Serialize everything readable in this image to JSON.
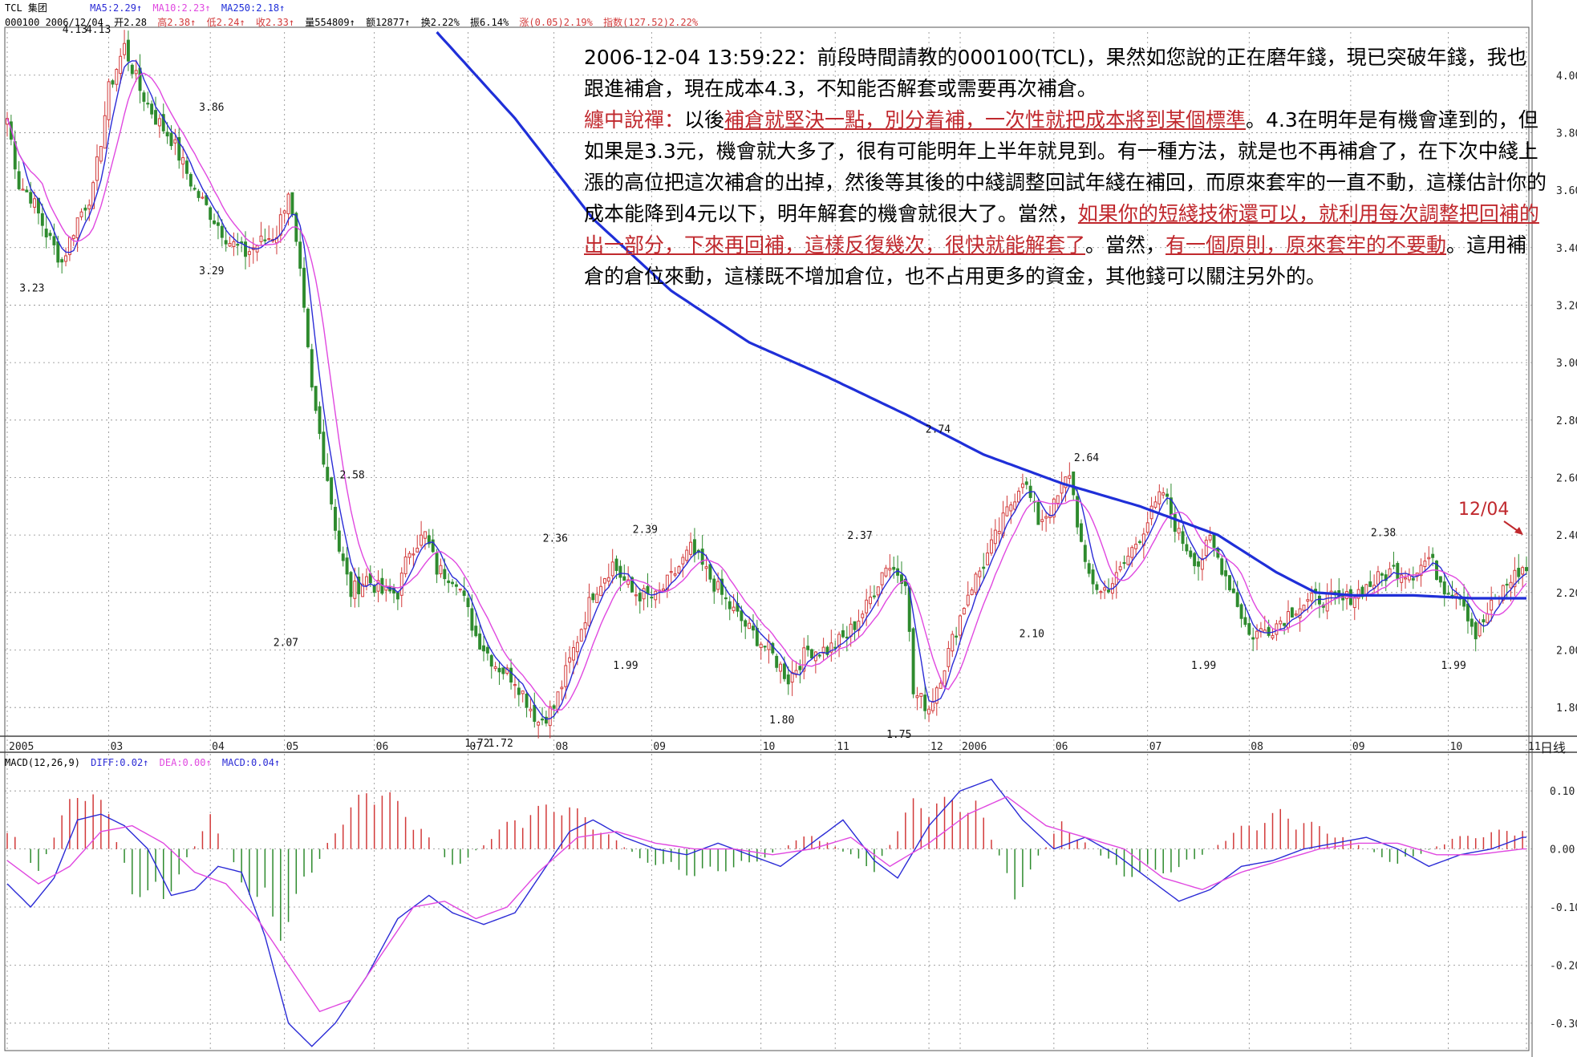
{
  "header": {
    "stock_name": "TCL 集团",
    "ma5": "MA5:2.29↑",
    "ma10": "MA10:2.23↑",
    "ma250": "MA250:2.18↑",
    "line2": {
      "code_date": "000100 2006/12/04",
      "open": "开2.28",
      "high": "高2.38↑",
      "low": "低2.24↑",
      "close": "收2.33↑",
      "volume": "量554809↑",
      "amount": "额12877↑",
      "turnover": "换2.22%",
      "amplitude": "振6.14%",
      "change": "涨(0.05)2.19%",
      "index": "指数(127.52)2.22%"
    }
  },
  "macd_header": {
    "name": "MACD(12,26,9)",
    "diff": "DIFF:0.02↑",
    "dea": "DEA:0.00↑",
    "macd": "MACD:0.04↑"
  },
  "colors": {
    "up": "#d23a3a",
    "down": "#2e8b2e",
    "ma5": "#2b2bd6",
    "ma10": "#e048e0",
    "ma250": "#1f2fd8",
    "grid": "#8a8a8a",
    "note_red": "#c0282d"
  },
  "note": {
    "line1": "2006-12-04 13:59:22：前段時間請教的000100(TCL)，果然如您說的正在磨年錢，現已突破年錢，我也跟進補倉，現在成本4.3，不知能否解套或需要再次補倉。",
    "reply_label": "纏中說禪：",
    "reply_a": "以後",
    "reply_u1": "補倉就堅決一點，別分着補，一次性就把成本將到某個標準",
    "reply_b": "。4.3在明年是有機會達到的，但如果是3.3元，機會就大多了，很有可能明年上半年就見到。有一種方法，就是也不再補倉了，在下次中綫上漲的高位把這次補倉的出掉，然後等其後的中綫調整回試年綫在補回，而原來套牢的一直不動，這樣估計你的成本能降到4元以下，明年解套的機會就很大了。當然，",
    "reply_u2": "如果你的短綫技術還可以，就利用每次調整把回補的出一部分，下來再回補，這樣反復幾次，很快就能解套了",
    "reply_c": "。當然，",
    "reply_u3": "有一個原則，原來套牢的不要動",
    "reply_d": "。這用補倉的倉位來動，這樣既不增加倉位，也不占用更多的資金，其他錢可以關注另外的。"
  },
  "marker": {
    "label": "12/04"
  },
  "period_label": "日线",
  "chart_data": [
    {
      "type": "candlestick",
      "title": "",
      "xlabel": "",
      "ylabel": "",
      "ylim": [
        1.7,
        4.15
      ],
      "yticks": [
        "4.00",
        "3.80",
        "3.60",
        "3.40",
        "3.20",
        "3.00",
        "2.80",
        "2.60",
        "2.40",
        "2.20",
        "2.00",
        "1.80"
      ],
      "xticks": [
        "2005",
        "03",
        "04",
        "05",
        "06",
        "07",
        "08",
        "09",
        "10",
        "11",
        "12",
        "2006",
        "06",
        "07",
        "08",
        "09",
        "10",
        "11"
      ],
      "grid": true,
      "close_path": [
        [
          0,
          3.85
        ],
        [
          3,
          3.62
        ],
        [
          6,
          3.58
        ],
        [
          10,
          3.45
        ],
        [
          14,
          3.35
        ],
        [
          18,
          3.5
        ],
        [
          22,
          3.6
        ],
        [
          26,
          3.95
        ],
        [
          30,
          4.1
        ],
        [
          34,
          3.95
        ],
        [
          38,
          3.85
        ],
        [
          42,
          3.78
        ],
        [
          48,
          3.6
        ],
        [
          53,
          3.5
        ],
        [
          57,
          3.42
        ],
        [
          61,
          3.38
        ],
        [
          65,
          3.42
        ],
        [
          69,
          3.45
        ],
        [
          72,
          3.6
        ],
        [
          75,
          3.3
        ],
        [
          78,
          2.9
        ],
        [
          82,
          2.6
        ],
        [
          85,
          2.35
        ],
        [
          88,
          2.2
        ],
        [
          92,
          2.25
        ],
        [
          96,
          2.2
        ],
        [
          100,
          2.2
        ],
        [
          103,
          2.35
        ],
        [
          107,
          2.4
        ],
        [
          110,
          2.28
        ],
        [
          115,
          2.25
        ],
        [
          120,
          2.05
        ],
        [
          125,
          1.95
        ],
        [
          130,
          1.9
        ],
        [
          136,
          1.75
        ],
        [
          140,
          1.8
        ],
        [
          145,
          2.0
        ],
        [
          150,
          2.2
        ],
        [
          155,
          2.3
        ],
        [
          160,
          2.2
        ],
        [
          166,
          2.18
        ],
        [
          170,
          2.25
        ],
        [
          175,
          2.35
        ],
        [
          180,
          2.25
        ],
        [
          185,
          2.15
        ],
        [
          190,
          2.07
        ],
        [
          195,
          2.0
        ],
        [
          200,
          1.9
        ],
        [
          205,
          2.0
        ],
        [
          210,
          2.0
        ],
        [
          215,
          2.05
        ],
        [
          220,
          2.15
        ],
        [
          225,
          2.3
        ],
        [
          230,
          2.25
        ],
        [
          232,
          1.85
        ],
        [
          236,
          1.8
        ],
        [
          240,
          1.95
        ],
        [
          246,
          2.2
        ],
        [
          250,
          2.3
        ],
        [
          255,
          2.45
        ],
        [
          260,
          2.6
        ],
        [
          264,
          2.45
        ],
        [
          268,
          2.5
        ],
        [
          272,
          2.62
        ],
        [
          276,
          2.28
        ],
        [
          280,
          2.2
        ],
        [
          284,
          2.25
        ],
        [
          288,
          2.35
        ],
        [
          292,
          2.45
        ],
        [
          296,
          2.55
        ],
        [
          300,
          2.4
        ],
        [
          305,
          2.3
        ],
        [
          308,
          2.38
        ],
        [
          314,
          2.2
        ],
        [
          318,
          2.05
        ],
        [
          324,
          2.08
        ],
        [
          330,
          2.15
        ],
        [
          336,
          2.18
        ],
        [
          342,
          2.17
        ],
        [
          348,
          2.22
        ],
        [
          355,
          2.28
        ],
        [
          360,
          2.27
        ],
        [
          364,
          2.32
        ],
        [
          368,
          2.22
        ],
        [
          372,
          2.2
        ],
        [
          376,
          2.05
        ],
        [
          380,
          2.15
        ],
        [
          385,
          2.25
        ],
        [
          388,
          2.28
        ]
      ],
      "ma250_path": [
        [
          110,
          4.15
        ],
        [
          130,
          3.85
        ],
        [
          150,
          3.5
        ],
        [
          170,
          3.25
        ],
        [
          190,
          3.07
        ],
        [
          210,
          2.95
        ],
        [
          230,
          2.82
        ],
        [
          250,
          2.68
        ],
        [
          270,
          2.58
        ],
        [
          290,
          2.5
        ],
        [
          310,
          2.4
        ],
        [
          325,
          2.27
        ],
        [
          335,
          2.2
        ],
        [
          345,
          2.19
        ],
        [
          360,
          2.19
        ],
        [
          375,
          2.18
        ],
        [
          388,
          2.18
        ]
      ],
      "annotations": [
        {
          "i": 17,
          "text": "4.13"
        },
        {
          "i": 23,
          "text": "4.13"
        },
        {
          "i": 6,
          "text": "3.23"
        },
        {
          "i": 52,
          "text": "3.86"
        },
        {
          "i": 52,
          "text": "3.29"
        },
        {
          "i": 71,
          "text": "2.07"
        },
        {
          "i": 88,
          "text": "2.58"
        },
        {
          "i": 120,
          "text": "1.72"
        },
        {
          "i": 126,
          "text": "1.72"
        },
        {
          "i": 140,
          "text": "2.36"
        },
        {
          "i": 158,
          "text": "1.99"
        },
        {
          "i": 163,
          "text": "2.39"
        },
        {
          "i": 198,
          "text": "1.80"
        },
        {
          "i": 218,
          "text": "2.37"
        },
        {
          "i": 228,
          "text": "1.75"
        },
        {
          "i": 238,
          "text": "2.74"
        },
        {
          "i": 262,
          "text": "2.10"
        },
        {
          "i": 276,
          "text": "2.64"
        },
        {
          "i": 306,
          "text": "1.99"
        },
        {
          "i": 352,
          "text": "2.38"
        },
        {
          "i": 370,
          "text": "1.99"
        }
      ]
    },
    {
      "type": "bar",
      "title": "",
      "xlabel": "",
      "ylabel": "",
      "ylim": [
        -0.35,
        0.15
      ],
      "yticks": [
        "0.10",
        "0.00",
        "-0.10",
        "-0.20",
        "-0.30"
      ],
      "grid": true,
      "diff_path": [
        [
          0,
          -0.06
        ],
        [
          6,
          -0.1
        ],
        [
          12,
          -0.05
        ],
        [
          18,
          0.05
        ],
        [
          24,
          0.06
        ],
        [
          30,
          0.04
        ],
        [
          36,
          0.0
        ],
        [
          42,
          -0.08
        ],
        [
          48,
          -0.07
        ],
        [
          54,
          -0.03
        ],
        [
          60,
          -0.04
        ],
        [
          66,
          -0.15
        ],
        [
          72,
          -0.3
        ],
        [
          78,
          -0.34
        ],
        [
          84,
          -0.3
        ],
        [
          92,
          -0.22
        ],
        [
          100,
          -0.12
        ],
        [
          108,
          -0.08
        ],
        [
          114,
          -0.11
        ],
        [
          122,
          -0.13
        ],
        [
          130,
          -0.11
        ],
        [
          138,
          -0.03
        ],
        [
          144,
          0.03
        ],
        [
          150,
          0.05
        ],
        [
          158,
          0.02
        ],
        [
          166,
          0.0
        ],
        [
          174,
          -0.01
        ],
        [
          182,
          0.01
        ],
        [
          190,
          -0.01
        ],
        [
          198,
          -0.03
        ],
        [
          206,
          0.01
        ],
        [
          214,
          0.05
        ],
        [
          222,
          -0.02
        ],
        [
          228,
          -0.05
        ],
        [
          236,
          0.04
        ],
        [
          244,
          0.1
        ],
        [
          252,
          0.12
        ],
        [
          260,
          0.05
        ],
        [
          268,
          0.0
        ],
        [
          276,
          0.02
        ],
        [
          284,
          -0.01
        ],
        [
          292,
          -0.05
        ],
        [
          300,
          -0.09
        ],
        [
          308,
          -0.07
        ],
        [
          316,
          -0.03
        ],
        [
          324,
          -0.02
        ],
        [
          332,
          0.0
        ],
        [
          340,
          0.01
        ],
        [
          348,
          0.02
        ],
        [
          356,
          0.0
        ],
        [
          364,
          -0.03
        ],
        [
          372,
          -0.01
        ],
        [
          380,
          0.0
        ],
        [
          388,
          0.02
        ]
      ],
      "dea_path": [
        [
          0,
          -0.02
        ],
        [
          8,
          -0.06
        ],
        [
          16,
          -0.03
        ],
        [
          24,
          0.03
        ],
        [
          32,
          0.04
        ],
        [
          40,
          0.01
        ],
        [
          48,
          -0.04
        ],
        [
          56,
          -0.06
        ],
        [
          64,
          -0.12
        ],
        [
          72,
          -0.2
        ],
        [
          80,
          -0.28
        ],
        [
          88,
          -0.26
        ],
        [
          96,
          -0.18
        ],
        [
          104,
          -0.1
        ],
        [
          112,
          -0.09
        ],
        [
          120,
          -0.12
        ],
        [
          128,
          -0.1
        ],
        [
          136,
          -0.04
        ],
        [
          146,
          0.02
        ],
        [
          156,
          0.03
        ],
        [
          166,
          0.01
        ],
        [
          176,
          0.0
        ],
        [
          186,
          0.0
        ],
        [
          196,
          -0.01
        ],
        [
          206,
          0.0
        ],
        [
          216,
          0.02
        ],
        [
          226,
          -0.03
        ],
        [
          236,
          0.01
        ],
        [
          246,
          0.06
        ],
        [
          256,
          0.09
        ],
        [
          266,
          0.04
        ],
        [
          276,
          0.02
        ],
        [
          286,
          0.0
        ],
        [
          296,
          -0.05
        ],
        [
          306,
          -0.07
        ],
        [
          316,
          -0.04
        ],
        [
          326,
          -0.02
        ],
        [
          336,
          0.0
        ],
        [
          346,
          0.01
        ],
        [
          356,
          0.01
        ],
        [
          366,
          -0.01
        ],
        [
          376,
          -0.01
        ],
        [
          388,
          0.0
        ]
      ],
      "histogram_peaks": [
        [
          0,
          0.05
        ],
        [
          8,
          -0.05
        ],
        [
          18,
          0.13
        ],
        [
          26,
          0.07
        ],
        [
          32,
          -0.08
        ],
        [
          40,
          -0.1
        ],
        [
          52,
          0.06
        ],
        [
          60,
          -0.06
        ],
        [
          70,
          -0.16
        ],
        [
          84,
          0.04
        ],
        [
          94,
          0.13
        ],
        [
          106,
          0.04
        ],
        [
          114,
          -0.04
        ],
        [
          130,
          0.06
        ],
        [
          142,
          0.09
        ],
        [
          150,
          0.05
        ],
        [
          162,
          -0.02
        ],
        [
          176,
          -0.05
        ],
        [
          190,
          -0.03
        ],
        [
          206,
          0.03
        ],
        [
          222,
          -0.04
        ],
        [
          232,
          0.09
        ],
        [
          248,
          0.09
        ],
        [
          258,
          -0.09
        ],
        [
          270,
          0.05
        ],
        [
          286,
          -0.05
        ],
        [
          300,
          -0.04
        ],
        [
          316,
          0.04
        ],
        [
          326,
          0.07
        ],
        [
          340,
          0.03
        ],
        [
          356,
          -0.03
        ],
        [
          370,
          0.02
        ],
        [
          388,
          0.04
        ]
      ]
    }
  ]
}
